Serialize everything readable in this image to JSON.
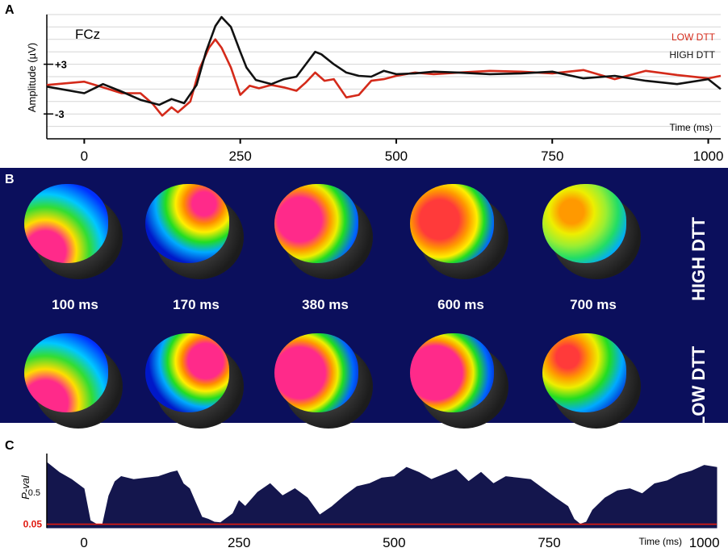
{
  "panels": {
    "a_label": "A",
    "b_label": "B",
    "c_label": "C"
  },
  "chart_data": [
    {
      "type": "line",
      "panel": "A",
      "annotation": "FCz",
      "xlabel": "Time (ms)",
      "ylabel": "Amplitude (µV)",
      "xlim": [
        -60,
        1020
      ],
      "ylim": [
        -6,
        9
      ],
      "xticks": [
        "0",
        "250",
        "500",
        "750",
        "1000"
      ],
      "ytick_labels": [
        "+3",
        "-3"
      ],
      "legend_position": "top-right",
      "series": [
        {
          "name": "LOW DTT",
          "color": "#d42a1a",
          "x": [
            -60,
            0,
            30,
            60,
            90,
            110,
            125,
            140,
            150,
            170,
            185,
            200,
            210,
            220,
            235,
            250,
            265,
            280,
            300,
            320,
            340,
            355,
            370,
            385,
            400,
            420,
            440,
            460,
            480,
            500,
            530,
            560,
            600,
            650,
            700,
            750,
            800,
            850,
            900,
            950,
            1000,
            1020
          ],
          "y": [
            0.5,
            0.9,
            0.2,
            -0.5,
            -0.5,
            -1.8,
            -3.2,
            -2.2,
            -2.8,
            -1.5,
            2.5,
            5.0,
            6.0,
            5.0,
            2.6,
            -0.7,
            0.4,
            0.1,
            0.5,
            0.2,
            -0.2,
            0.8,
            2.0,
            1.0,
            1.2,
            -1.0,
            -0.7,
            1.0,
            1.2,
            1.6,
            2.0,
            1.8,
            2.0,
            2.2,
            2.1,
            1.9,
            2.3,
            1.2,
            2.2,
            1.7,
            1.3,
            1.6
          ]
        },
        {
          "name": "HIGH DTT",
          "color": "#111111",
          "x": [
            -60,
            0,
            30,
            60,
            90,
            120,
            140,
            160,
            180,
            195,
            210,
            220,
            235,
            250,
            260,
            275,
            300,
            320,
            340,
            355,
            370,
            380,
            400,
            420,
            440,
            460,
            480,
            500,
            530,
            560,
            600,
            650,
            700,
            750,
            800,
            850,
            900,
            950,
            1000,
            1020
          ],
          "y": [
            0.3,
            -0.5,
            0.6,
            -0.3,
            -1.3,
            -1.9,
            -1.2,
            -1.7,
            0.5,
            4.5,
            7.6,
            8.7,
            7.5,
            4.5,
            2.6,
            1.1,
            0.6,
            1.2,
            1.5,
            3.0,
            4.5,
            4.2,
            3.0,
            2.0,
            1.6,
            1.5,
            2.2,
            1.8,
            1.9,
            2.1,
            2.0,
            1.8,
            1.9,
            2.1,
            1.3,
            1.6,
            1.0,
            0.6,
            1.2,
            0.0
          ]
        }
      ]
    },
    {
      "type": "heatmap",
      "panel": "B",
      "row_labels": [
        "HIGH DTT",
        "LOW DTT"
      ],
      "time_labels": [
        "100 ms",
        "170 ms",
        "380 ms",
        "600 ms",
        "700 ms"
      ]
    },
    {
      "type": "area",
      "panel": "C",
      "xlabel": "Time (ms)",
      "ylabel": "P-val",
      "xlim": [
        -60,
        1020
      ],
      "ylim": [
        0,
        1
      ],
      "xticks": [
        "0",
        "250",
        "500",
        "750",
        "1000"
      ],
      "ytick_labels": [
        "0.5",
        "0.05"
      ],
      "threshold": 0.05,
      "fill_color": "#14164d",
      "threshold_color": "#e01a10",
      "x": [
        -60,
        -40,
        -20,
        0,
        10,
        20,
        30,
        40,
        50,
        60,
        80,
        100,
        120,
        140,
        150,
        160,
        170,
        180,
        190,
        200,
        210,
        220,
        240,
        250,
        260,
        280,
        300,
        320,
        340,
        360,
        380,
        400,
        420,
        440,
        460,
        480,
        500,
        520,
        540,
        560,
        580,
        600,
        620,
        640,
        660,
        680,
        700,
        720,
        740,
        760,
        780,
        790,
        800,
        810,
        820,
        840,
        860,
        880,
        900,
        920,
        940,
        960,
        980,
        1000,
        1020
      ],
      "y": [
        0.92,
        0.78,
        0.68,
        0.55,
        0.1,
        0.05,
        0.05,
        0.45,
        0.65,
        0.72,
        0.68,
        0.7,
        0.72,
        0.78,
        0.8,
        0.62,
        0.55,
        0.35,
        0.15,
        0.12,
        0.08,
        0.07,
        0.2,
        0.38,
        0.3,
        0.5,
        0.62,
        0.45,
        0.55,
        0.42,
        0.18,
        0.3,
        0.45,
        0.58,
        0.62,
        0.7,
        0.72,
        0.85,
        0.78,
        0.68,
        0.75,
        0.82,
        0.65,
        0.78,
        0.62,
        0.72,
        0.7,
        0.68,
        0.55,
        0.42,
        0.3,
        0.12,
        0.05,
        0.08,
        0.25,
        0.42,
        0.52,
        0.55,
        0.48,
        0.62,
        0.66,
        0.75,
        0.8,
        0.88,
        0.85
      ]
    }
  ]
}
